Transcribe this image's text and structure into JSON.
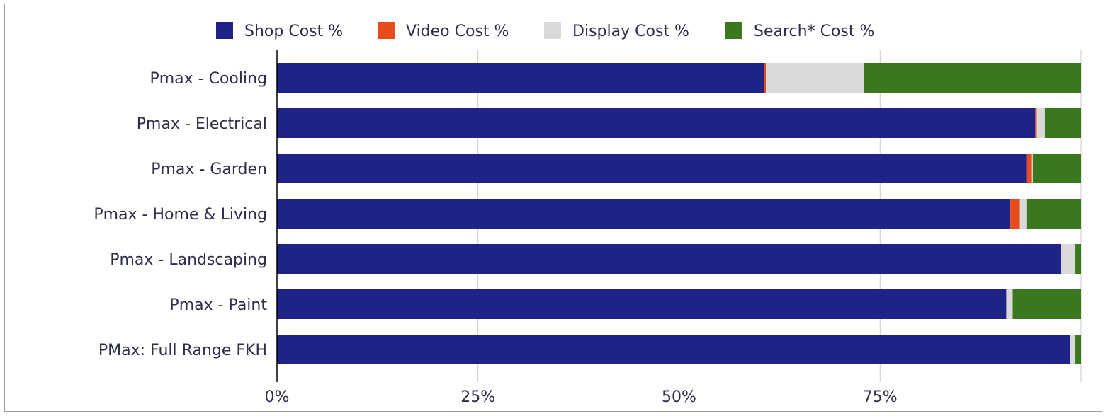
{
  "chart_data": {
    "type": "bar",
    "orientation": "horizontal",
    "stacked": true,
    "normalized": true,
    "title": "",
    "xlabel": "",
    "ylabel": "",
    "xlim": [
      0,
      100
    ],
    "x_ticks": [
      0,
      25,
      50,
      75,
      100
    ],
    "x_tick_labels": [
      "0%",
      "25%",
      "50%",
      "75%",
      ""
    ],
    "grid": true,
    "legend_position": "top",
    "categories": [
      "Pmax - Cooling",
      "Pmax - Electrical",
      "Pmax - Garden",
      "Pmax - Home & Living",
      "Pmax - Landscaping",
      "Pmax - Paint",
      "PMax: Full Range FKH"
    ],
    "series": [
      {
        "name": "Shop Cost %",
        "color": "#1f2385",
        "values": [
          60.6,
          94.3,
          93.2,
          91.2,
          97.5,
          90.7,
          98.6
        ]
      },
      {
        "name": "Video Cost %",
        "color": "#e84c1c",
        "values": [
          0.2,
          0.2,
          0.7,
          1.2,
          0.0,
          0.0,
          0.0
        ]
      },
      {
        "name": "Display Cost %",
        "color": "#d9d9d9",
        "values": [
          12.2,
          1.0,
          0.1,
          0.8,
          1.8,
          0.8,
          0.7
        ]
      },
      {
        "name": "Search* Cost %",
        "color": "#3a781f",
        "values": [
          27.0,
          4.5,
          6.0,
          6.8,
          0.7,
          8.5,
          0.7
        ]
      }
    ]
  },
  "colors": {
    "axis": "#000000",
    "grid": "#c9c9c9",
    "text": "#2e2e4a"
  }
}
